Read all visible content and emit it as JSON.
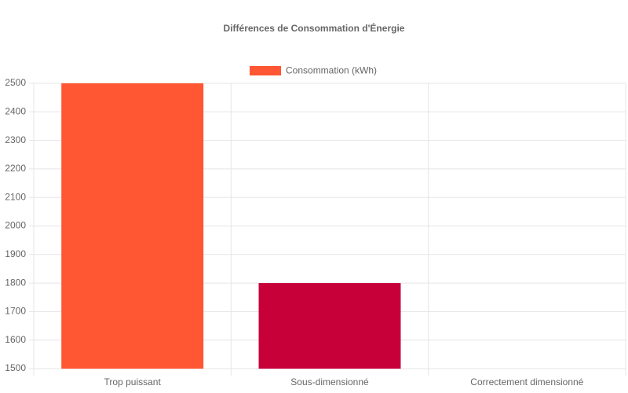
{
  "chart_data": {
    "type": "bar",
    "title": "Différences de Consommation d'Énergie",
    "categories": [
      "Trop puissant",
      "Sous-dimensionné",
      "Correctement dimensionné"
    ],
    "series": [
      {
        "name": "Consommation (kWh)",
        "colors": [
          "#ff5733",
          "#c70039",
          "#900c3f"
        ],
        "values": [
          2500,
          1800,
          1500
        ]
      }
    ],
    "ylim": [
      1500,
      2500
    ],
    "yticks": [
      1500,
      1600,
      1700,
      1800,
      1900,
      2000,
      2100,
      2200,
      2300,
      2400,
      2500
    ],
    "grid": true,
    "legend": "top"
  }
}
